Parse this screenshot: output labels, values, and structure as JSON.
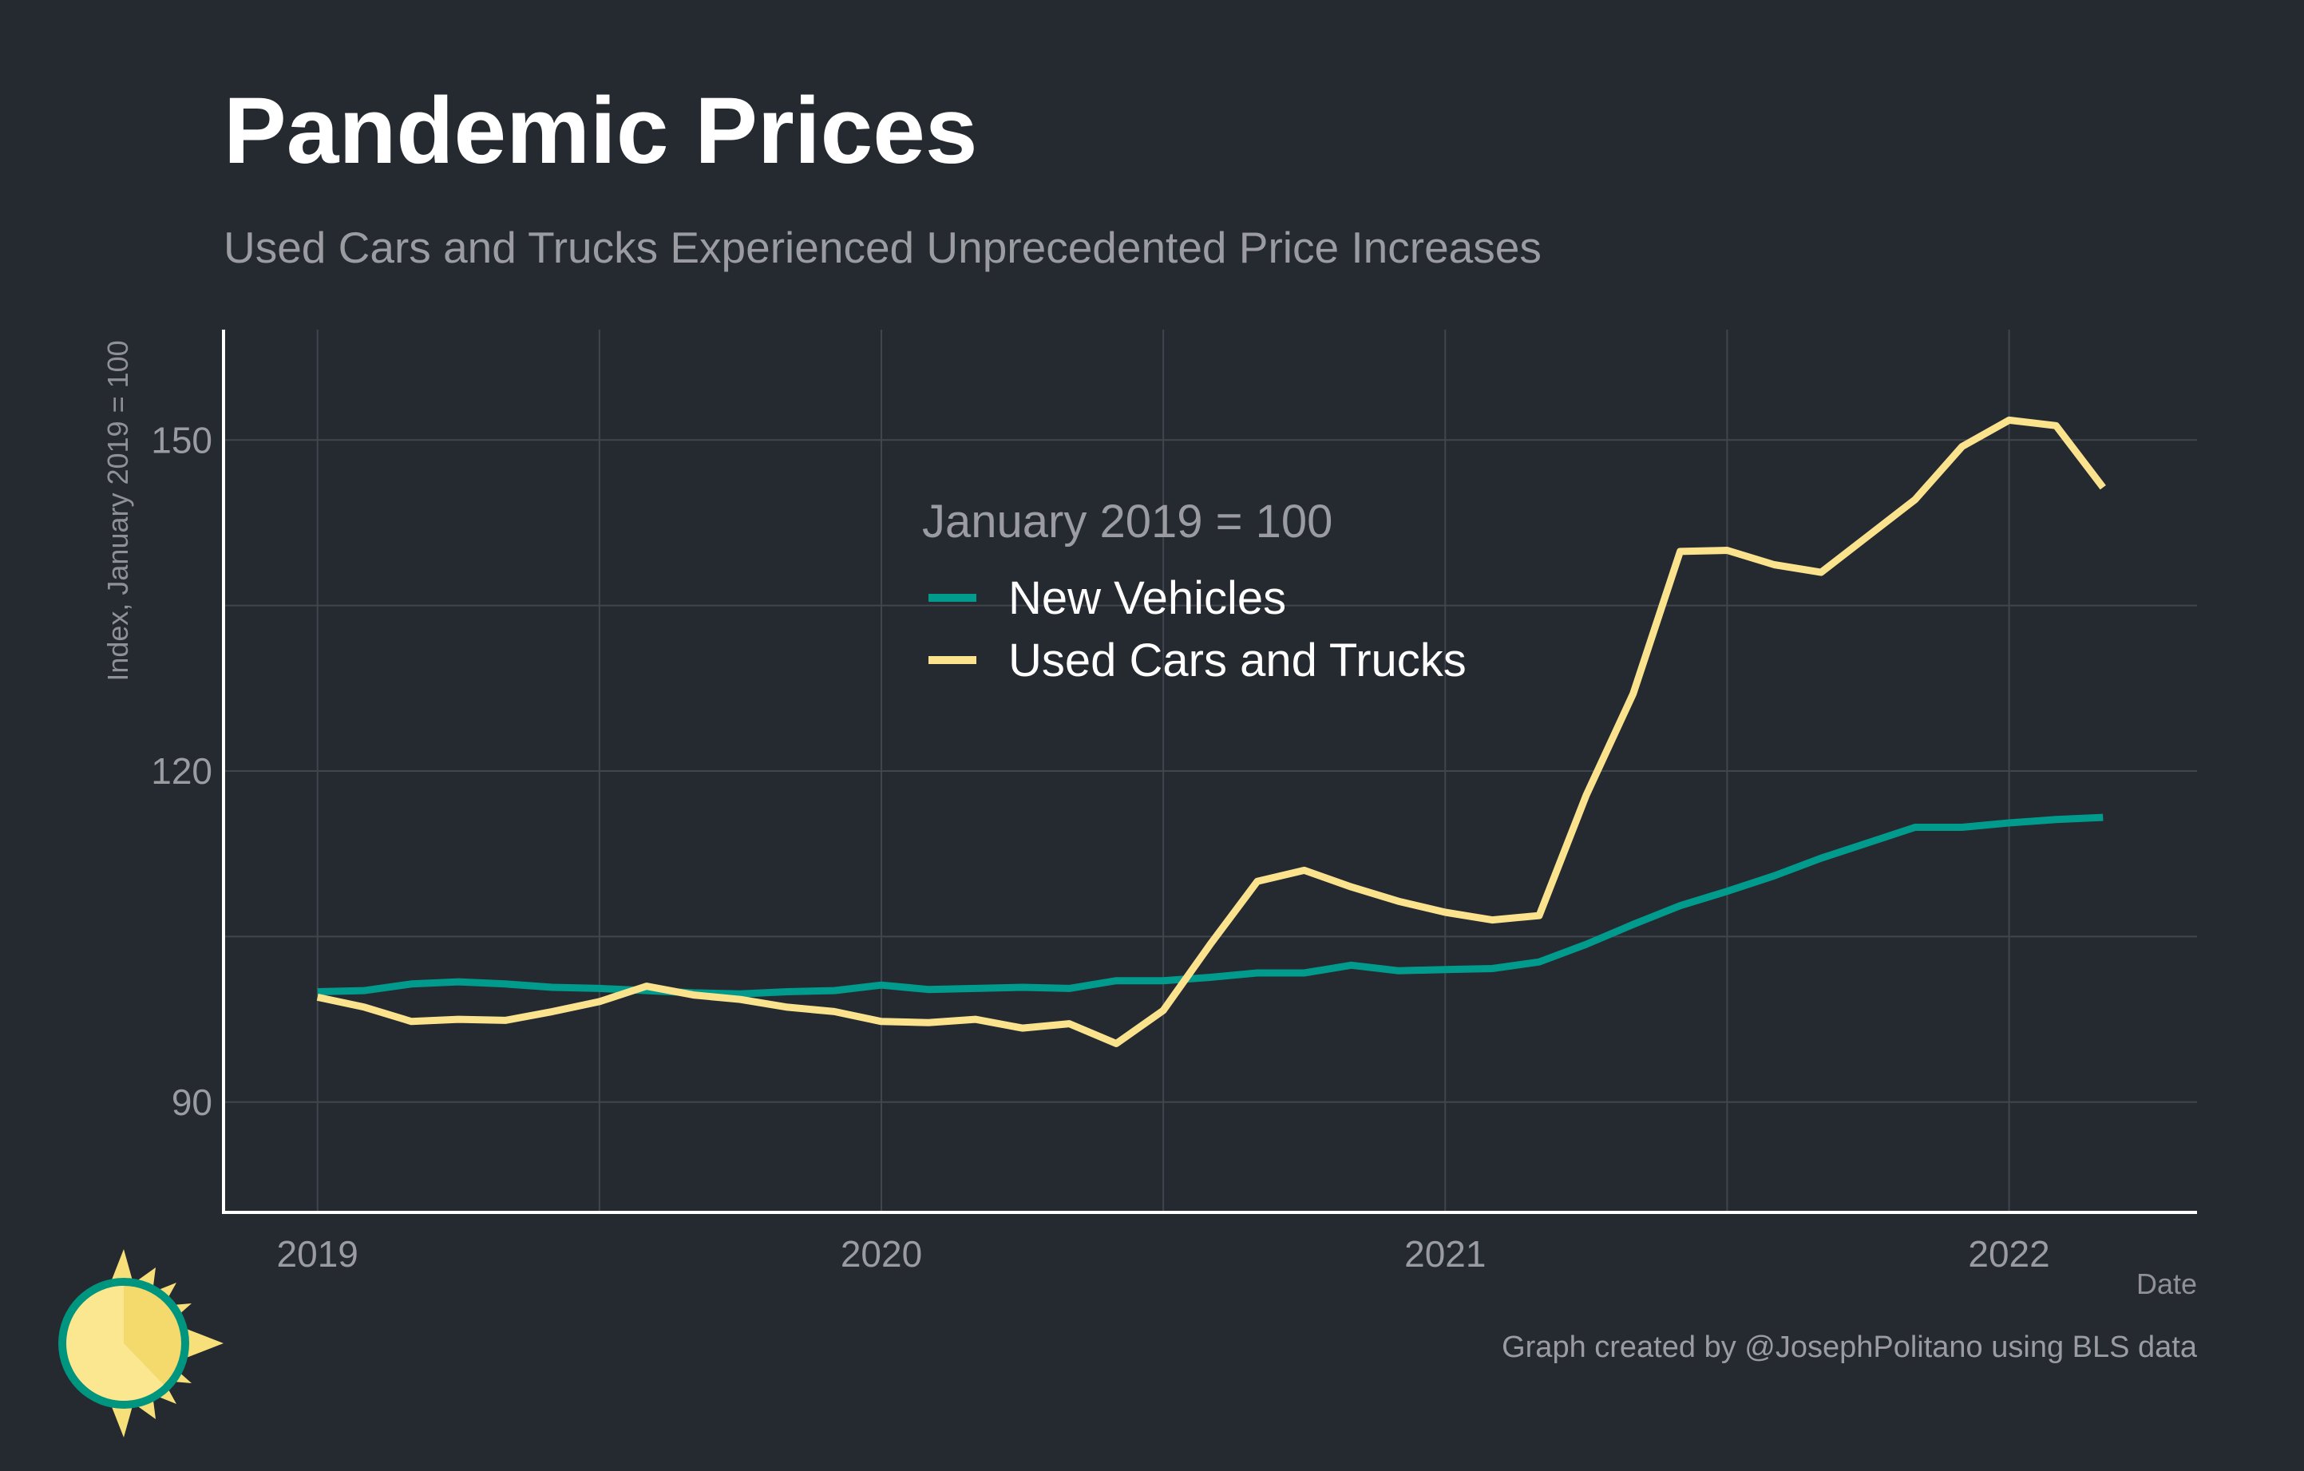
{
  "title": "Pandemic Prices",
  "subtitle": "Used Cars and Trucks Experienced Unprecedented Price Increases",
  "caption": "Graph created by @JosephPolitano using BLS data",
  "logo_icon": "sun-clock-icon",
  "colors": {
    "background": "#252930",
    "new_vehicles": "#009b8c",
    "used_cars": "#fbe38e",
    "logo_yellow": "#f7e07a",
    "logo_ring": "#00957f"
  },
  "chart_data": {
    "type": "line",
    "xlabel": "Date",
    "ylabel": "Index, January 2019 = 100",
    "legend_title": "January 2019 = 100",
    "legend_position": "top-center",
    "grid": true,
    "xlim": [
      "2018-11",
      "2022-05"
    ],
    "ylim": [
      80,
      160
    ],
    "y_ticks": [
      90,
      120,
      150
    ],
    "x_ticks": [
      "2019",
      "2020",
      "2021",
      "2022"
    ],
    "x": [
      "2019-01",
      "2019-02",
      "2019-03",
      "2019-04",
      "2019-05",
      "2019-06",
      "2019-07",
      "2019-08",
      "2019-09",
      "2019-10",
      "2019-11",
      "2019-12",
      "2020-01",
      "2020-02",
      "2020-03",
      "2020-04",
      "2020-05",
      "2020-06",
      "2020-07",
      "2020-08",
      "2020-09",
      "2020-10",
      "2020-11",
      "2020-12",
      "2021-01",
      "2021-02",
      "2021-03",
      "2021-04",
      "2021-05",
      "2021-06",
      "2021-07",
      "2021-08",
      "2021-09",
      "2021-10",
      "2021-11",
      "2021-12",
      "2022-01",
      "2022-02",
      "2022-03"
    ],
    "series": [
      {
        "name": "New Vehicles",
        "color": "#009b8c",
        "values": [
          100.0,
          100.1,
          100.7,
          100.9,
          100.7,
          100.4,
          100.3,
          100.1,
          99.9,
          99.8,
          100.0,
          100.1,
          100.6,
          100.2,
          100.3,
          100.4,
          100.3,
          101.0,
          101.0,
          101.3,
          101.7,
          101.7,
          102.4,
          101.9,
          102.0,
          102.1,
          102.7,
          104.3,
          106.1,
          107.8,
          109.1,
          110.5,
          112.1,
          113.5,
          114.9,
          114.9,
          115.3,
          115.6,
          115.8
        ]
      },
      {
        "name": "Used Cars and Trucks",
        "color": "#fbe38e",
        "values": [
          99.5,
          98.6,
          97.3,
          97.5,
          97.4,
          98.2,
          99.1,
          100.5,
          99.7,
          99.3,
          98.6,
          98.2,
          97.3,
          97.2,
          97.5,
          96.7,
          97.1,
          95.3,
          98.3,
          104.3,
          110.0,
          111.0,
          109.5,
          108.2,
          107.2,
          106.5,
          106.9,
          117.8,
          127.0,
          139.9,
          140.0,
          138.7,
          138.0,
          141.3,
          144.6,
          149.4,
          151.8,
          151.3,
          145.7
        ]
      }
    ]
  }
}
